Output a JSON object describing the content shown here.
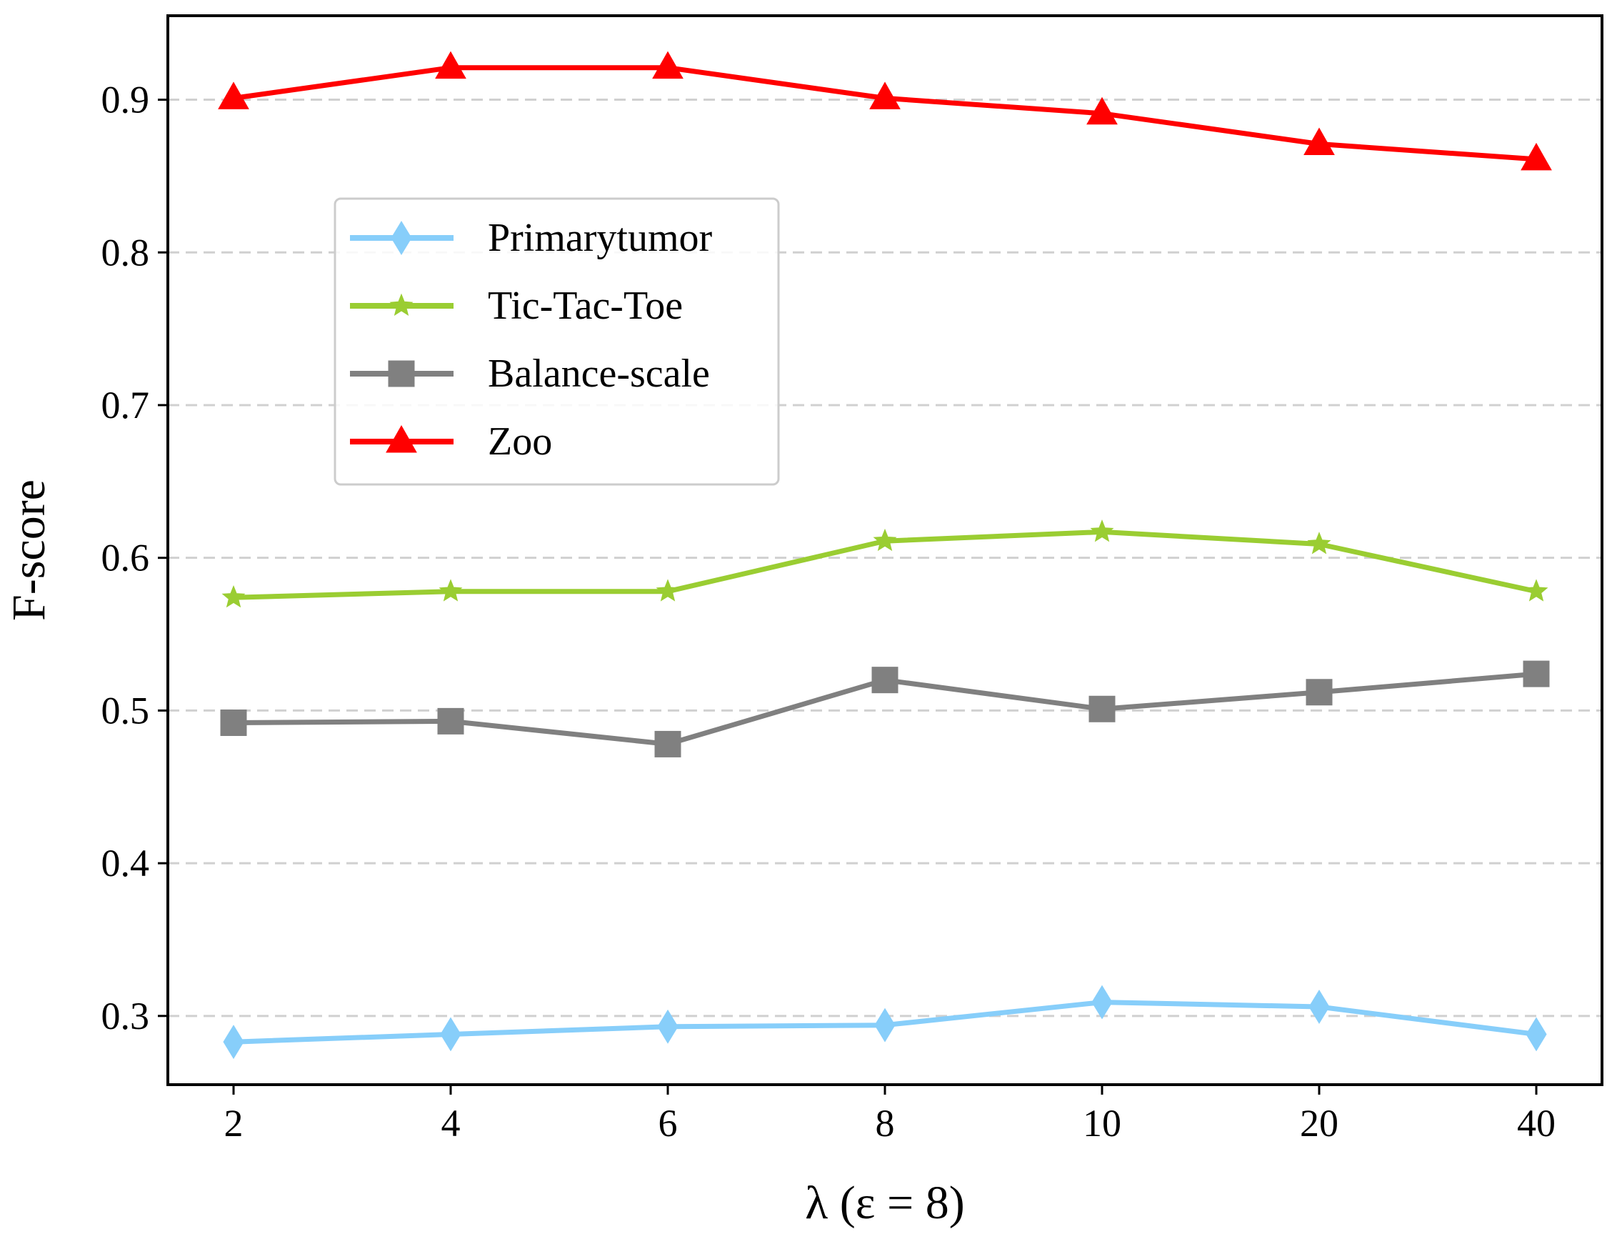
{
  "chart_data": {
    "type": "line",
    "title": "",
    "xlabel": "λ (ε = 8)",
    "ylabel": "F-score",
    "categories": [
      "2",
      "4",
      "6",
      "8",
      "10",
      "20",
      "40"
    ],
    "ylim": [
      0.255,
      0.955
    ],
    "yticks": [
      "0.3",
      "0.4",
      "0.5",
      "0.6",
      "0.7",
      "0.8",
      "0.9"
    ],
    "grid": "horizontal dashed",
    "legend_position": "upper-left",
    "series": [
      {
        "name": "Primarytumor",
        "color": "#87CEFA",
        "marker": "diamond",
        "values": [
          0.283,
          0.288,
          0.293,
          0.294,
          0.309,
          0.306,
          0.288
        ]
      },
      {
        "name": "Tic-Tac-Toe",
        "color": "#9ACD32",
        "marker": "star",
        "values": [
          0.574,
          0.578,
          0.578,
          0.611,
          0.617,
          0.609,
          0.578
        ]
      },
      {
        "name": "Balance-scale",
        "color": "#808080",
        "marker": "square",
        "values": [
          0.492,
          0.493,
          0.478,
          0.52,
          0.501,
          0.512,
          0.524
        ]
      },
      {
        "name": "Zoo",
        "color": "#FF0000",
        "marker": "triangle",
        "values": [
          0.901,
          0.921,
          0.921,
          0.901,
          0.891,
          0.871,
          0.861
        ]
      }
    ]
  }
}
